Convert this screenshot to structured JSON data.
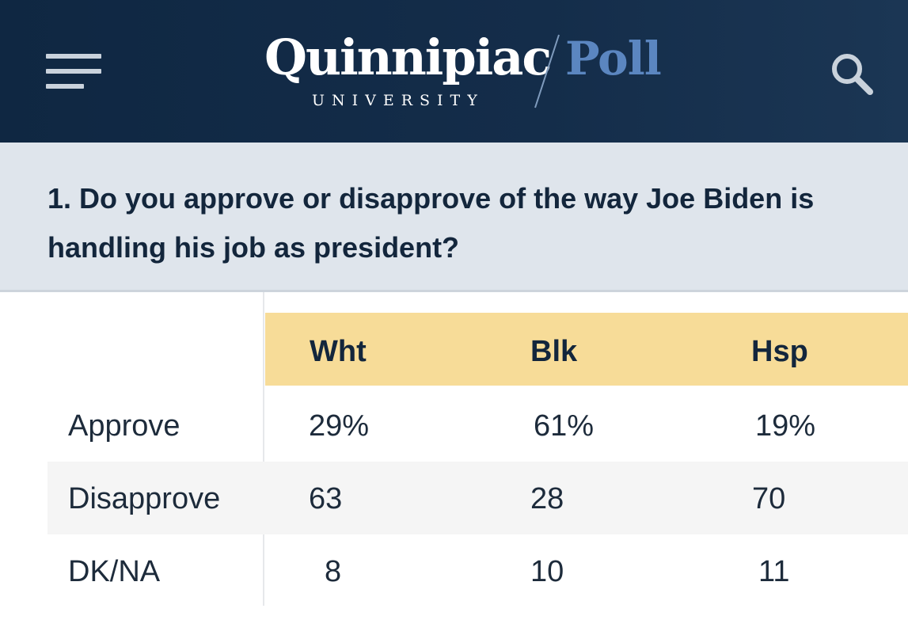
{
  "header": {
    "logo_name": "Quinnipiac",
    "logo_poll": "Poll",
    "logo_university": "UNIVERSITY",
    "background_color": "#0f2742",
    "poll_color": "#5b86c0",
    "menu_icon": "hamburger-menu-icon",
    "search_icon": "search-icon"
  },
  "question": {
    "text": "1. Do you approve or disapprove of the way Joe Biden is handling his job as president?"
  },
  "table": {
    "header_color": "#f7dc98",
    "columns": [
      "Wht",
      "Blk",
      "Hsp"
    ],
    "rows": [
      {
        "label": "Approve",
        "values": [
          "29%",
          "61%",
          "19%"
        ]
      },
      {
        "label": "Disapprove",
        "values": [
          "63",
          "28",
          "70"
        ]
      },
      {
        "label": "DK/NA",
        "values": [
          "8",
          "10",
          "11"
        ]
      }
    ]
  }
}
